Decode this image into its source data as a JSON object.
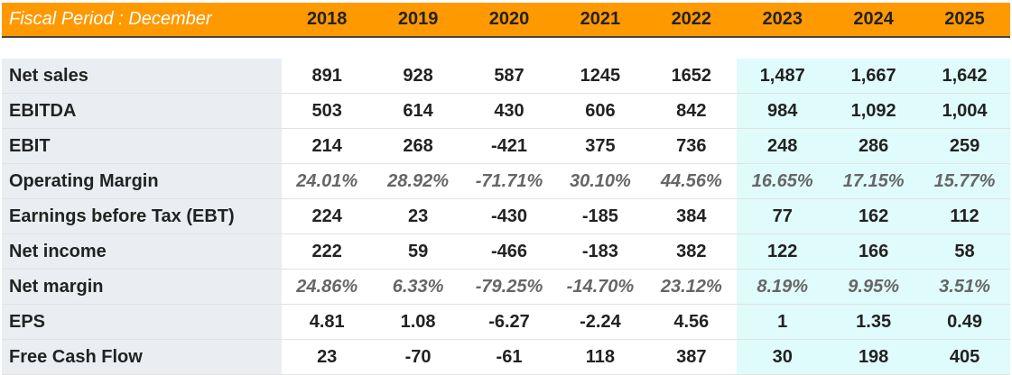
{
  "header": {
    "period_label": "Fiscal Period : December",
    "years": [
      "2018",
      "2019",
      "2020",
      "2021",
      "2022",
      "2023",
      "2024",
      "2025"
    ],
    "forecast_start_index": 5
  },
  "colors": {
    "header_bg": "#ff9900",
    "label_bg": "#eaeef2",
    "forecast_bg": "#e0fbfb"
  },
  "rows": [
    {
      "label": "Net sales",
      "values": [
        "891",
        "928",
        "587",
        "1245",
        "1652",
        "1,487",
        "1,667",
        "1,642"
      ],
      "pct": false
    },
    {
      "label": "EBITDA",
      "values": [
        "503",
        "614",
        "430",
        "606",
        "842",
        "984",
        "1,092",
        "1,004"
      ],
      "pct": false
    },
    {
      "label": "EBIT",
      "values": [
        "214",
        "268",
        "-421",
        "375",
        "736",
        "248",
        "286",
        "259"
      ],
      "pct": false
    },
    {
      "label": "Operating Margin",
      "values": [
        "24.01%",
        "28.92%",
        "-71.71%",
        "30.10%",
        "44.56%",
        "16.65%",
        "17.15%",
        "15.77%"
      ],
      "pct": true
    },
    {
      "label": "Earnings before Tax (EBT)",
      "values": [
        "224",
        "23",
        "-430",
        "-185",
        "384",
        "77",
        "162",
        "112"
      ],
      "pct": false
    },
    {
      "label": "Net income",
      "values": [
        "222",
        "59",
        "-466",
        "-183",
        "382",
        "122",
        "166",
        "58"
      ],
      "pct": false
    },
    {
      "label": "Net margin",
      "values": [
        "24.86%",
        "6.33%",
        "-79.25%",
        "-14.70%",
        "23.12%",
        "8.19%",
        "9.95%",
        "3.51%"
      ],
      "pct": true
    },
    {
      "label": "EPS",
      "values": [
        "4.81",
        "1.08",
        "-6.27",
        "-2.24",
        "4.56",
        "1",
        "1.35",
        "0.49"
      ],
      "pct": false
    },
    {
      "label": "Free Cash Flow",
      "values": [
        "23",
        "-70",
        "-61",
        "118",
        "387",
        "30",
        "198",
        "405"
      ],
      "pct": false
    }
  ]
}
